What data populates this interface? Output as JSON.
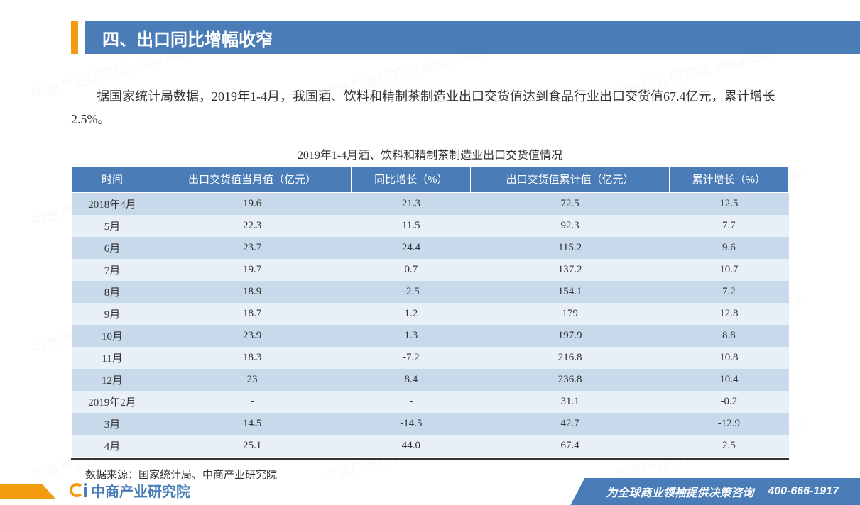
{
  "header": {
    "title": "四、出口同比增幅收窄"
  },
  "intro": "据国家统计局数据，2019年1-4月，我国酒、饮料和精制茶制造业出口交货值达到食品行业出口交货值67.4亿元，累计增长2.5%。",
  "table": {
    "title": "2019年1-4月酒、饮料和精制茶制造业出口交货值情况",
    "columns": [
      "时间",
      "出口交货值当月值（亿元）",
      "同比增长（%）",
      "出口交货值累计值（亿元）",
      "累计增长（%）"
    ],
    "rows": [
      [
        "2018年4月",
        "19.6",
        "21.3",
        "72.5",
        "12.5"
      ],
      [
        "5月",
        "22.3",
        "11.5",
        "92.3",
        "7.7"
      ],
      [
        "6月",
        "23.7",
        "24.4",
        "115.2",
        "9.6"
      ],
      [
        "7月",
        "19.7",
        "0.7",
        "137.2",
        "10.7"
      ],
      [
        "8月",
        "18.9",
        "-2.5",
        "154.1",
        "7.2"
      ],
      [
        "9月",
        "18.7",
        "1.2",
        "179",
        "12.8"
      ],
      [
        "10月",
        "23.9",
        "1.3",
        "197.9",
        "8.8"
      ],
      [
        "11月",
        "18.3",
        "-7.2",
        "216.8",
        "10.8"
      ],
      [
        "12月",
        "23",
        "8.4",
        "236.8",
        "10.4"
      ],
      [
        "2019年2月",
        "-",
        "-",
        "31.1",
        "-0.2"
      ],
      [
        "3月",
        "14.5",
        "-14.5",
        "42.7",
        "-12.9"
      ],
      [
        "4月",
        "25.1",
        "44.0",
        "67.4",
        "2.5"
      ]
    ],
    "source": "数据来源：国家统计局、中商产业研究院",
    "header_bg": "#4a7db8",
    "header_color": "#ffffff",
    "row_odd_bg": "#c8d9eb",
    "row_even_bg": "#e8eff7"
  },
  "footer": {
    "logo_text": "中商产业研究院",
    "slogan": "为全球商业领袖提供决策咨询",
    "phone": "400-666-1917"
  },
  "watermark": "中商产业研究院 www.askci.com"
}
